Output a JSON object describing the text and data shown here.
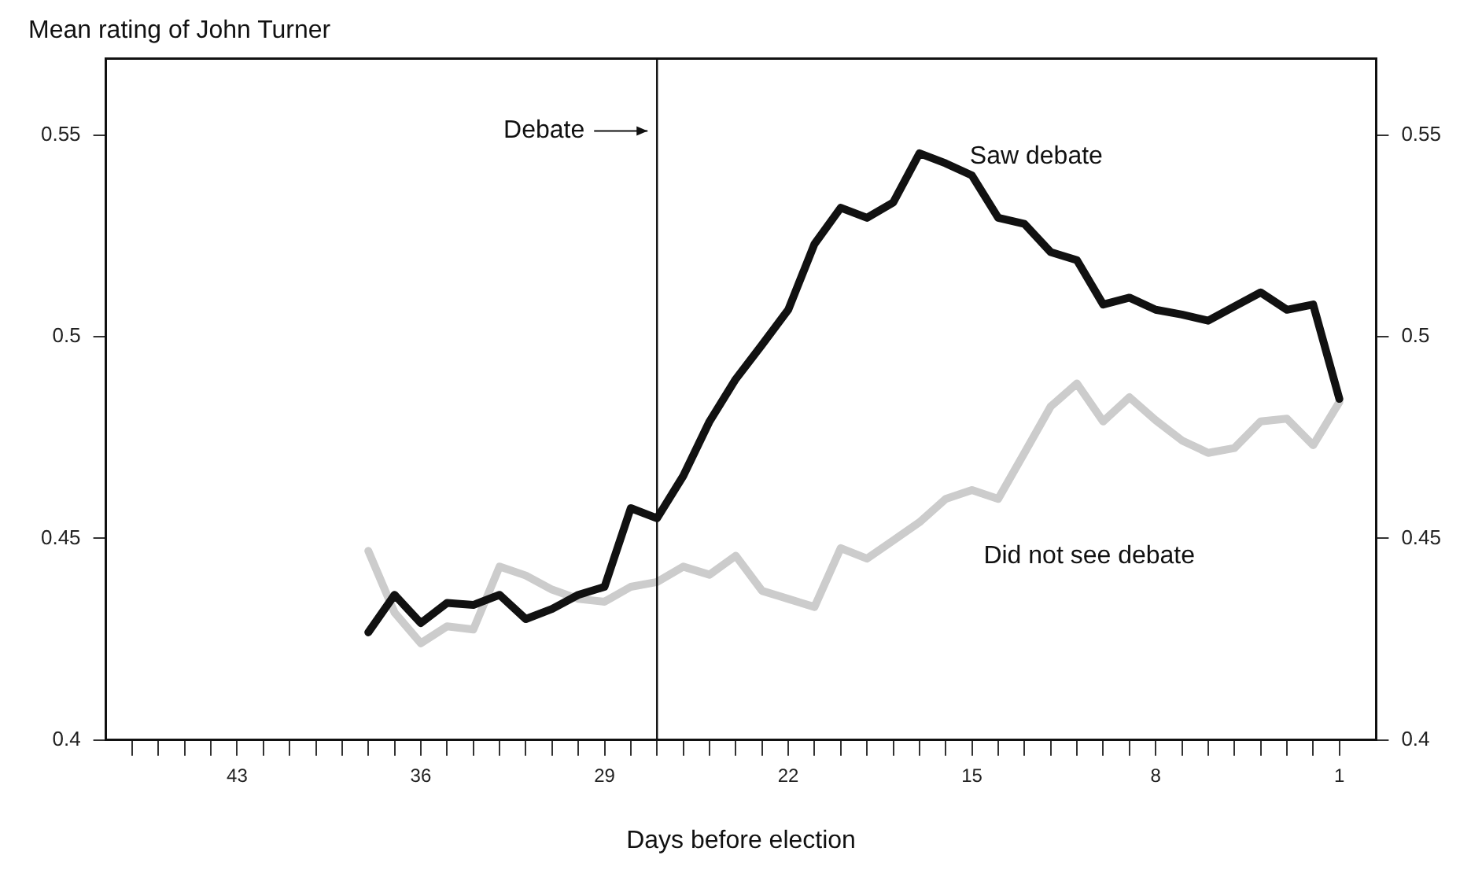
{
  "chart_data": {
    "type": "line",
    "title": "Mean rating of John Turner",
    "xlabel": "Days before election",
    "x": [
      38,
      37,
      36,
      35,
      34,
      33,
      32,
      31,
      30,
      29,
      28,
      27,
      26,
      25,
      24,
      23,
      22,
      21,
      20,
      19,
      18,
      17,
      16,
      15,
      14,
      13,
      12,
      11,
      10,
      9,
      8,
      7,
      6,
      5,
      4,
      3,
      2,
      1
    ],
    "series": [
      {
        "name": "Saw debate",
        "color": "#111111",
        "values": [
          0.4267,
          0.436,
          0.429,
          0.434,
          0.4335,
          0.436,
          0.43,
          0.4325,
          0.436,
          0.438,
          0.4575,
          0.455,
          0.4655,
          0.479,
          0.4895,
          0.498,
          0.5067,
          0.523,
          0.532,
          0.5295,
          0.5333,
          0.5455,
          0.543,
          0.54,
          0.5295,
          0.528,
          0.521,
          0.519,
          0.508,
          0.5097,
          0.5067,
          0.5055,
          0.504,
          0.5075,
          0.511,
          0.5067,
          0.508,
          0.4846
        ]
      },
      {
        "name": "Did not see debate",
        "color": "#cccccc",
        "values": [
          0.4469,
          0.4316,
          0.424,
          0.4282,
          0.4274,
          0.443,
          0.4408,
          0.4373,
          0.435,
          0.4343,
          0.438,
          0.4392,
          0.443,
          0.441,
          0.4457,
          0.437,
          0.435,
          0.433,
          0.4476,
          0.445,
          0.4495,
          0.454,
          0.4598,
          0.462,
          0.4598,
          0.4712,
          0.4827,
          0.4884,
          0.479,
          0.485,
          0.4793,
          0.4743,
          0.4712,
          0.4724,
          0.479,
          0.4797,
          0.4731,
          0.4838
        ]
      }
    ],
    "xlim": [
      48,
      -0.4
    ],
    "xticks": [
      {
        "value": 47,
        "label": null
      },
      {
        "value": 46,
        "label": null
      },
      {
        "value": 45,
        "label": null
      },
      {
        "value": 44,
        "label": null
      },
      43,
      {
        "value": 42,
        "label": null
      },
      {
        "value": 41,
        "label": null
      },
      {
        "value": 40,
        "label": null
      },
      {
        "value": 39,
        "label": null
      },
      {
        "value": 38,
        "label": null
      },
      {
        "value": 37,
        "label": null
      },
      36,
      {
        "value": 35,
        "label": null
      },
      {
        "value": 34,
        "label": null
      },
      {
        "value": 33,
        "label": null
      },
      {
        "value": 32,
        "label": null
      },
      {
        "value": 31,
        "label": null
      },
      {
        "value": 30,
        "label": null
      },
      29,
      {
        "value": 28,
        "label": null
      },
      {
        "value": 27,
        "label": null
      },
      {
        "value": 26,
        "label": null
      },
      {
        "value": 25,
        "label": null
      },
      {
        "value": 24,
        "label": null
      },
      {
        "value": 23,
        "label": null
      },
      22,
      {
        "value": 21,
        "label": null
      },
      {
        "value": 20,
        "label": null
      },
      {
        "value": 19,
        "label": null
      },
      {
        "value": 18,
        "label": null
      },
      {
        "value": 17,
        "label": null
      },
      {
        "value": 16,
        "label": null
      },
      15,
      {
        "value": 14,
        "label": null
      },
      {
        "value": 13,
        "label": null
      },
      {
        "value": 12,
        "label": null
      },
      {
        "value": 11,
        "label": null
      },
      {
        "value": 10,
        "label": null
      },
      {
        "value": 9,
        "label": null
      },
      8,
      {
        "value": 7,
        "label": null
      },
      {
        "value": 6,
        "label": null
      },
      {
        "value": 5,
        "label": null
      },
      {
        "value": 4,
        "label": null
      },
      {
        "value": 3,
        "label": null
      },
      {
        "value": 2,
        "label": null
      },
      1
    ],
    "ylim": [
      0.4,
      0.569
    ],
    "yticks": [
      0.4,
      0.45,
      0.5,
      0.55
    ],
    "y2lim": [
      0.4,
      0.569
    ],
    "y2ticks": [
      0.4,
      0.45,
      0.5,
      0.55
    ],
    "ref_lines": [
      {
        "axis": "x",
        "value": 27,
        "label": "Debate",
        "color": "#111111"
      }
    ],
    "grid": false,
    "legend": false,
    "marker": "none",
    "line_style": "solid"
  }
}
